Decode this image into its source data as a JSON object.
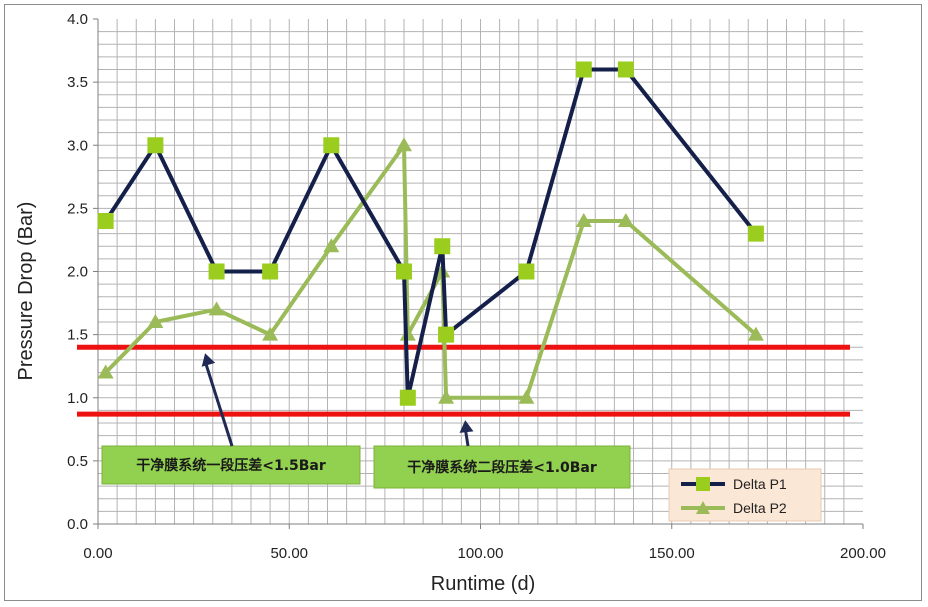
{
  "chart_data": {
    "type": "line",
    "xlabel": "Runtime (d)",
    "ylabel": "Pressure Drop (Bar)",
    "xlim": [
      0,
      200
    ],
    "ylim": [
      0,
      4.0
    ],
    "x_ticks": [
      "0.00",
      "50.00",
      "100.00",
      "150.00",
      "200.00"
    ],
    "y_ticks": [
      "0.0",
      "0.5",
      "1.0",
      "1.5",
      "2.0",
      "2.5",
      "3.0",
      "3.5",
      "4.0"
    ],
    "grid": true,
    "legend_position": "bottom-right",
    "series": [
      {
        "name": "Delta P1",
        "marker": "square",
        "line_color": "#14204a",
        "marker_color": "#9acd1e",
        "x": [
          2,
          15,
          31,
          45,
          61,
          80,
          81,
          90,
          91,
          112,
          127,
          138,
          172
        ],
        "y": [
          2.4,
          3.0,
          2.0,
          2.0,
          3.0,
          2.0,
          1.0,
          2.2,
          1.5,
          2.0,
          3.6,
          3.6,
          2.3
        ]
      },
      {
        "name": "Delta P2",
        "marker": "triangle",
        "line_color": "#9bbb59",
        "marker_color": "#9bbb59",
        "x": [
          2,
          15,
          31,
          45,
          61,
          80,
          81,
          90,
          91,
          112,
          127,
          138,
          172
        ],
        "y": [
          1.2,
          1.6,
          1.7,
          1.5,
          2.2,
          3.0,
          1.5,
          2.0,
          1.0,
          1.0,
          2.4,
          2.4,
          1.5
        ]
      }
    ],
    "reference_lines": [
      {
        "y": 1.4,
        "color": "#ee1111"
      },
      {
        "y": 0.87,
        "color": "#ee1111"
      }
    ],
    "annotations": [
      {
        "text": "干净膜系统一段压差<1.5Bar",
        "arrow_x": 28,
        "arrow_y": 1.4
      },
      {
        "text": "干净膜系统二段压差<1.0Bar",
        "arrow_x": 96,
        "arrow_y": 0.87
      }
    ]
  }
}
